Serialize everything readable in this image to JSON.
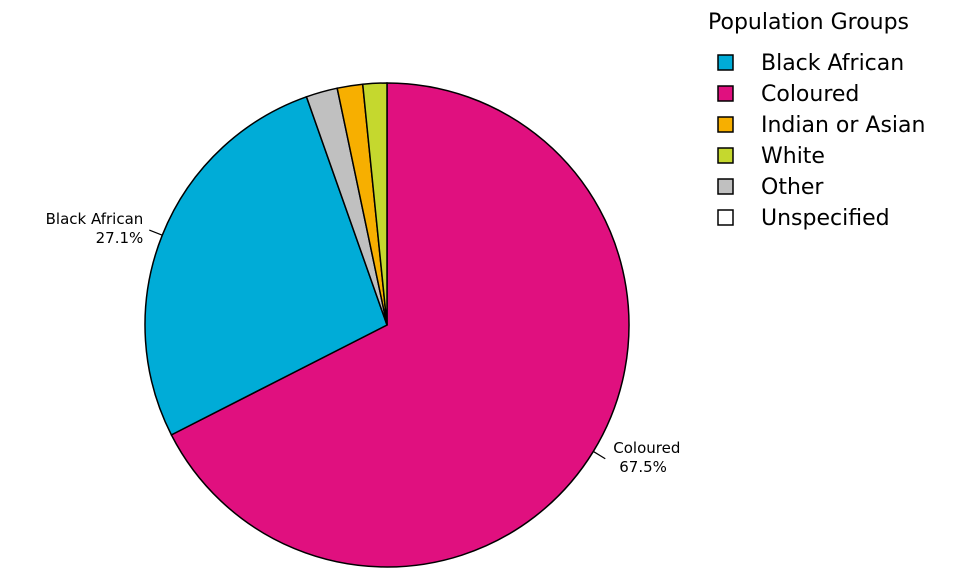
{
  "chart_data": {
    "type": "pie",
    "legend_title": "Population Groups",
    "legend_position": "top-right",
    "slices": [
      {
        "name": "Black African",
        "value": 27.1,
        "color": "#00ACD7",
        "label_name": "Black African",
        "label_value": "27.1%",
        "show_label": true
      },
      {
        "name": "Coloured",
        "value": 67.5,
        "color": "#E0107F",
        "label_name": "Coloured",
        "label_value": "67.5%",
        "show_label": true
      },
      {
        "name": "Indian or Asian",
        "value": 1.7,
        "color": "#F7AF00",
        "show_label": false
      },
      {
        "name": "White",
        "value": 1.6,
        "color": "#C5D82E",
        "show_label": false
      },
      {
        "name": "Other",
        "value": 2.1,
        "color": "#C0C0C0",
        "show_label": false
      },
      {
        "name": "Unspecified",
        "value": 0.0,
        "color": "#FFFFFF",
        "show_label": false
      }
    ]
  }
}
